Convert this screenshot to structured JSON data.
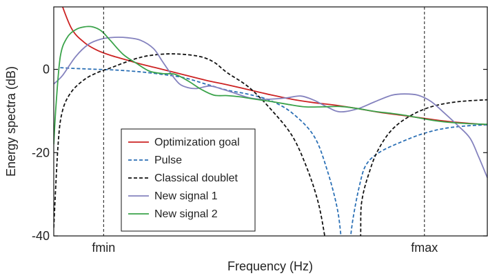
{
  "chart_data": {
    "type": "line",
    "title": "",
    "xlabel": "Frequency (Hz)",
    "ylabel": "Energy spectra (dB)",
    "xlim": [
      0,
      1
    ],
    "ylim": [
      -40,
      15
    ],
    "y_ticks": [
      0,
      -20,
      -40
    ],
    "y_tick_labels": [
      "0",
      "-20",
      "-40"
    ],
    "x_ticks": [
      {
        "x": 0.115,
        "label": "fmin"
      },
      {
        "x": 0.855,
        "label": "fmax"
      }
    ],
    "vertical_reference_lines": [
      0.115,
      0.855
    ],
    "legend_position": "lower-left",
    "grid": false,
    "series": [
      {
        "name": "Optimization goal",
        "color": "#cc2222",
        "style": "solid",
        "points": [
          [
            0.01,
            18
          ],
          [
            0.04,
            10
          ],
          [
            0.07,
            6.5
          ],
          [
            0.1,
            4.6
          ],
          [
            0.13,
            3.4
          ],
          [
            0.17,
            2.2
          ],
          [
            0.2,
            1.3
          ],
          [
            0.25,
            0
          ],
          [
            0.3,
            -1.3
          ],
          [
            0.35,
            -2.6
          ],
          [
            0.4,
            -3.7
          ],
          [
            0.45,
            -4.9
          ],
          [
            0.5,
            -6.1
          ],
          [
            0.55,
            -7.2
          ],
          [
            0.6,
            -8
          ],
          [
            0.65,
            -8.6
          ],
          [
            0.7,
            -9.4
          ],
          [
            0.75,
            -10.3
          ],
          [
            0.8,
            -11
          ],
          [
            0.85,
            -11.7
          ],
          [
            0.9,
            -12.4
          ],
          [
            0.95,
            -12.9
          ],
          [
            1.0,
            -13.3
          ]
        ]
      },
      {
        "name": "Pulse",
        "color": "#2a6fb5",
        "style": "dashed",
        "points": [
          [
            0.015,
            0.4
          ],
          [
            0.05,
            0.2
          ],
          [
            0.1,
            0
          ],
          [
            0.15,
            -0.2
          ],
          [
            0.2,
            -0.6
          ],
          [
            0.25,
            -1.2
          ],
          [
            0.3,
            -2
          ],
          [
            0.35,
            -3.5
          ],
          [
            0.4,
            -5
          ],
          [
            0.45,
            -6
          ],
          [
            0.5,
            -7.5
          ],
          [
            0.55,
            -10.5
          ],
          [
            0.6,
            -16
          ],
          [
            0.63,
            -24
          ],
          [
            0.655,
            -34
          ],
          [
            0.668,
            -45
          ],
          [
            0.678,
            -45
          ],
          [
            0.69,
            -36
          ],
          [
            0.705,
            -28
          ],
          [
            0.72,
            -23
          ],
          [
            0.75,
            -20
          ],
          [
            0.8,
            -17.5
          ],
          [
            0.85,
            -15.5
          ],
          [
            0.9,
            -14.2
          ],
          [
            0.95,
            -13.6
          ],
          [
            1.0,
            -13.3
          ]
        ]
      },
      {
        "name": "Classical doublet",
        "color": "#111111",
        "style": "dashed",
        "points": [
          [
            0,
            -38
          ],
          [
            0.01,
            -18
          ],
          [
            0.02,
            -10
          ],
          [
            0.04,
            -5.5
          ],
          [
            0.07,
            -2.5
          ],
          [
            0.1,
            -0.8
          ],
          [
            0.13,
            0.3
          ],
          [
            0.16,
            1.5
          ],
          [
            0.19,
            2.6
          ],
          [
            0.22,
            3.3
          ],
          [
            0.26,
            3.7
          ],
          [
            0.3,
            3.6
          ],
          [
            0.34,
            3
          ],
          [
            0.37,
            1.7
          ],
          [
            0.4,
            -0.8
          ],
          [
            0.45,
            -4.3
          ],
          [
            0.5,
            -9.5
          ],
          [
            0.55,
            -16
          ],
          [
            0.585,
            -24
          ],
          [
            0.61,
            -32
          ],
          [
            0.625,
            -40
          ],
          [
            0.632,
            -45
          ],
          [
            0.7,
            -45
          ],
          [
            0.71,
            -32
          ],
          [
            0.73,
            -24
          ],
          [
            0.75,
            -19
          ],
          [
            0.78,
            -14.5
          ],
          [
            0.82,
            -11.3
          ],
          [
            0.87,
            -9
          ],
          [
            0.93,
            -7.8
          ],
          [
            1.0,
            -7.3
          ]
        ]
      },
      {
        "name": "New signal 1",
        "color": "#8482be",
        "style": "solid",
        "points": [
          [
            0,
            -3.5
          ],
          [
            0.02,
            -1.5
          ],
          [
            0.05,
            3
          ],
          [
            0.08,
            6
          ],
          [
            0.11,
            7.3
          ],
          [
            0.14,
            7.7
          ],
          [
            0.17,
            7.6
          ],
          [
            0.2,
            7
          ],
          [
            0.23,
            5
          ],
          [
            0.25,
            2
          ],
          [
            0.27,
            -1
          ],
          [
            0.29,
            -3.5
          ],
          [
            0.31,
            -4.4
          ],
          [
            0.33,
            -4.6
          ],
          [
            0.36,
            -4
          ],
          [
            0.39,
            -4.8
          ],
          [
            0.42,
            -5.8
          ],
          [
            0.45,
            -6.8
          ],
          [
            0.48,
            -7.2
          ],
          [
            0.51,
            -7.1
          ],
          [
            0.54,
            -6.8
          ],
          [
            0.57,
            -6.4
          ],
          [
            0.6,
            -7.4
          ],
          [
            0.63,
            -9
          ],
          [
            0.66,
            -10.2
          ],
          [
            0.7,
            -9.5
          ],
          [
            0.74,
            -7.8
          ],
          [
            0.78,
            -6.2
          ],
          [
            0.81,
            -5.9
          ],
          [
            0.84,
            -6.2
          ],
          [
            0.87,
            -7.7
          ],
          [
            0.9,
            -10.4
          ],
          [
            0.93,
            -13.3
          ],
          [
            0.96,
            -16.5
          ],
          [
            0.98,
            -21
          ],
          [
            1.0,
            -26
          ]
        ]
      },
      {
        "name": "New signal 2",
        "color": "#3aa34a",
        "style": "solid",
        "points": [
          [
            0,
            -18
          ],
          [
            0.005,
            -9
          ],
          [
            0.015,
            3
          ],
          [
            0.03,
            7.5
          ],
          [
            0.05,
            9.5
          ],
          [
            0.07,
            10.2
          ],
          [
            0.09,
            10.2
          ],
          [
            0.11,
            9.2
          ],
          [
            0.13,
            7
          ],
          [
            0.16,
            3.6
          ],
          [
            0.19,
            1.5
          ],
          [
            0.22,
            -0.4
          ],
          [
            0.25,
            -1
          ],
          [
            0.28,
            -1.2
          ],
          [
            0.31,
            -2.8
          ],
          [
            0.34,
            -4.8
          ],
          [
            0.37,
            -6.2
          ],
          [
            0.4,
            -6.3
          ],
          [
            0.43,
            -6.6
          ],
          [
            0.46,
            -7.1
          ],
          [
            0.5,
            -7.7
          ],
          [
            0.54,
            -8.4
          ],
          [
            0.58,
            -9
          ],
          [
            0.62,
            -9
          ],
          [
            0.66,
            -8.9
          ],
          [
            0.7,
            -9.4
          ],
          [
            0.74,
            -10.1
          ],
          [
            0.78,
            -10.6
          ],
          [
            0.82,
            -11.2
          ],
          [
            0.86,
            -12
          ],
          [
            0.9,
            -12.6
          ],
          [
            0.95,
            -13
          ],
          [
            1.0,
            -13.2
          ]
        ]
      }
    ]
  }
}
